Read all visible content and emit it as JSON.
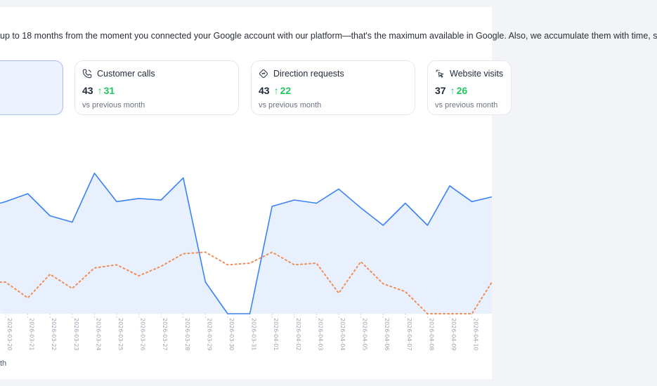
{
  "intro_text": "up to 18 months from the moment you connected your Google account with our platform—that's the maximum available in Google. Also, we accumulate them with time, s",
  "cards": [
    {
      "title": "",
      "value": "",
      "delta": "",
      "vs": "",
      "selected": true,
      "icon": "none"
    },
    {
      "title": "Customer calls",
      "value": "43",
      "delta": "31",
      "vs": "vs previous month",
      "icon": "phone-icon"
    },
    {
      "title": "Direction requests",
      "value": "43",
      "delta": "22",
      "vs": "vs previous month",
      "icon": "direction-icon"
    },
    {
      "title": "Website visits",
      "value": "37",
      "delta": "26",
      "vs": "vs previous month",
      "icon": "cursor-click-icon"
    }
  ],
  "legend_fragment": "th",
  "colors": {
    "current_line": "#3b82f6",
    "current_fill": "#e8f0fd",
    "previous_line": "#ef8d57",
    "grid": "#d1d5db",
    "tick_text": "#9ca3af",
    "delta_up": "#22c55e"
  },
  "chart_data": {
    "type": "area",
    "x": [
      "2026-03-20",
      "2026-03-21",
      "2026-03-22",
      "2026-03-23",
      "2026-03-24",
      "2026-03-25",
      "2026-03-26",
      "2026-03-27",
      "2026-03-28",
      "2026-03-29",
      "2026-03-30",
      "2026-03-31",
      "2026-04-01",
      "2026-04-02",
      "2026-04-03",
      "2026-04-04",
      "2026-04-05",
      "2026-04-06",
      "2026-04-07",
      "2026-04-08",
      "2026-04-09",
      "2026-04-10"
    ],
    "series": [
      {
        "values": [
          71,
          76,
          62,
          58,
          89,
          71,
          73,
          72,
          86,
          20,
          0,
          0,
          68,
          72,
          70,
          79,
          67,
          56,
          70,
          56,
          81,
          71
        ]
      },
      {
        "values": [
          20,
          10,
          25,
          16,
          29,
          31,
          24,
          30,
          38,
          39,
          31,
          32,
          39,
          31,
          32,
          13,
          33,
          19,
          14,
          0,
          0,
          0
        ]
      }
    ],
    "start_x_index": -0.25,
    "start_values": [
      70,
      20
    ],
    "end_values": [
      74,
      20
    ],
    "ylim": [
      0,
      100
    ],
    "grid": "vertical",
    "xlabel": "",
    "ylabel": ""
  }
}
